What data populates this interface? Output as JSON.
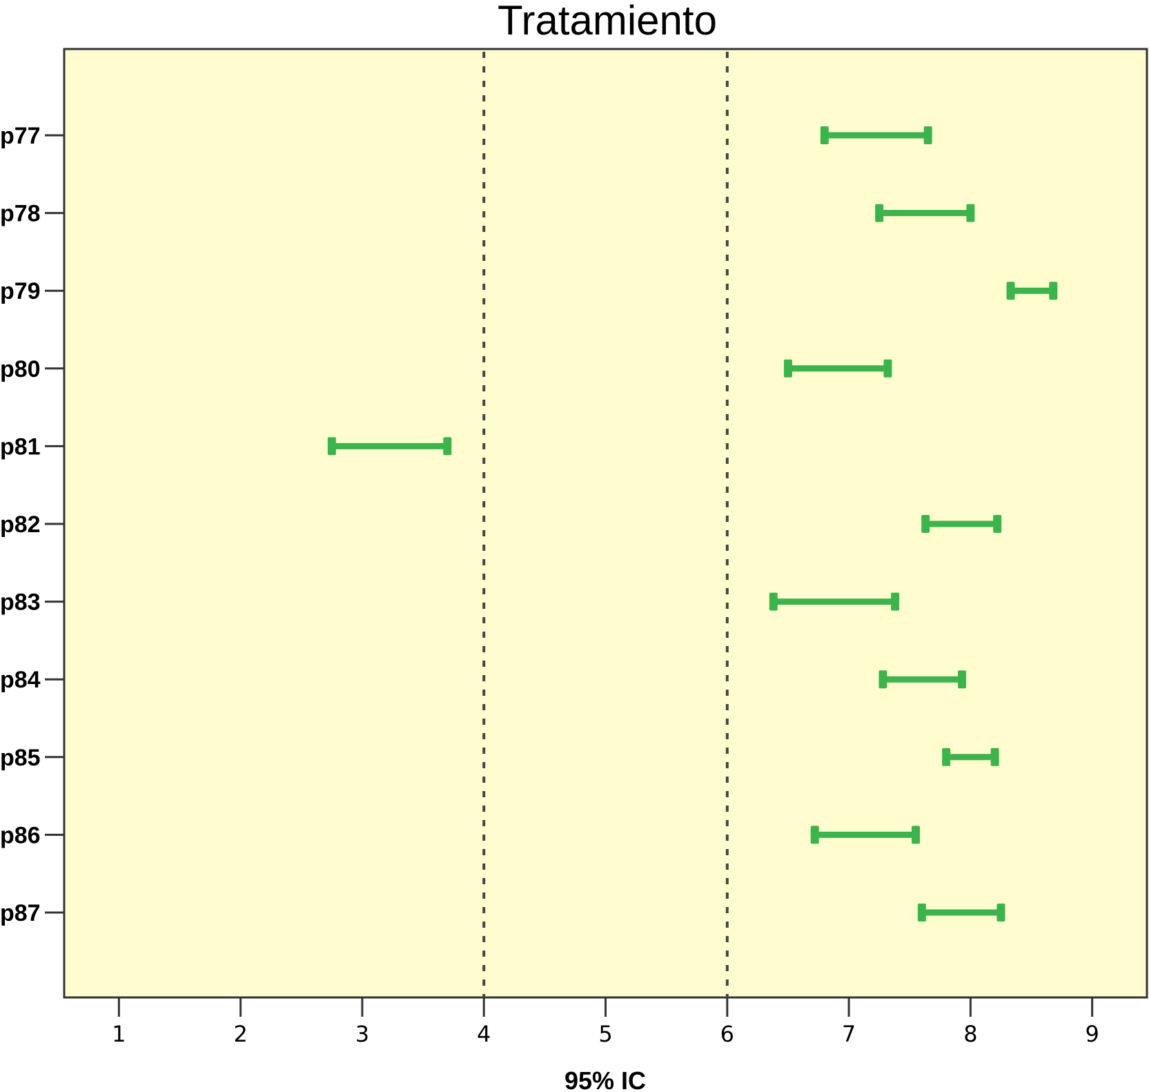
{
  "chart_data": {
    "type": "errorbar",
    "title": "Tratamiento",
    "xlabel": "95% IC",
    "ylabel": "",
    "xlim": [
      0.55,
      9.45
    ],
    "xticks": [
      1,
      2,
      3,
      4,
      5,
      6,
      7,
      8,
      9
    ],
    "xtick_labels": [
      "1",
      "2",
      "3",
      "4",
      "5",
      "6",
      "7",
      "8",
      "9"
    ],
    "reference_lines": [
      4,
      6
    ],
    "categories": [
      "p77",
      "p78",
      "p79",
      "p80",
      "p81",
      "p82",
      "p83",
      "p84",
      "p85",
      "p86",
      "p87"
    ],
    "intervals": [
      {
        "label": "p77",
        "low": 6.8,
        "high": 7.65
      },
      {
        "label": "p78",
        "low": 7.25,
        "high": 8.0
      },
      {
        "label": "p79",
        "low": 8.33,
        "high": 8.68
      },
      {
        "label": "p80",
        "low": 6.5,
        "high": 7.32
      },
      {
        "label": "p81",
        "low": 2.75,
        "high": 3.7
      },
      {
        "label": "p82",
        "low": 7.63,
        "high": 8.22
      },
      {
        "label": "p83",
        "low": 6.38,
        "high": 7.38
      },
      {
        "label": "p84",
        "low": 7.28,
        "high": 7.93
      },
      {
        "label": "p85",
        "low": 7.8,
        "high": 8.2
      },
      {
        "label": "p86",
        "low": 6.72,
        "high": 7.55
      },
      {
        "label": "p87",
        "low": 7.6,
        "high": 8.25
      }
    ],
    "grid": false,
    "legend": "none",
    "colors": {
      "plot_background": "#fffdd0",
      "interval_outside": "#3cb44b",
      "interval_inside": "#ee3338",
      "reference_line": "#444444",
      "axis": "#333333"
    }
  }
}
